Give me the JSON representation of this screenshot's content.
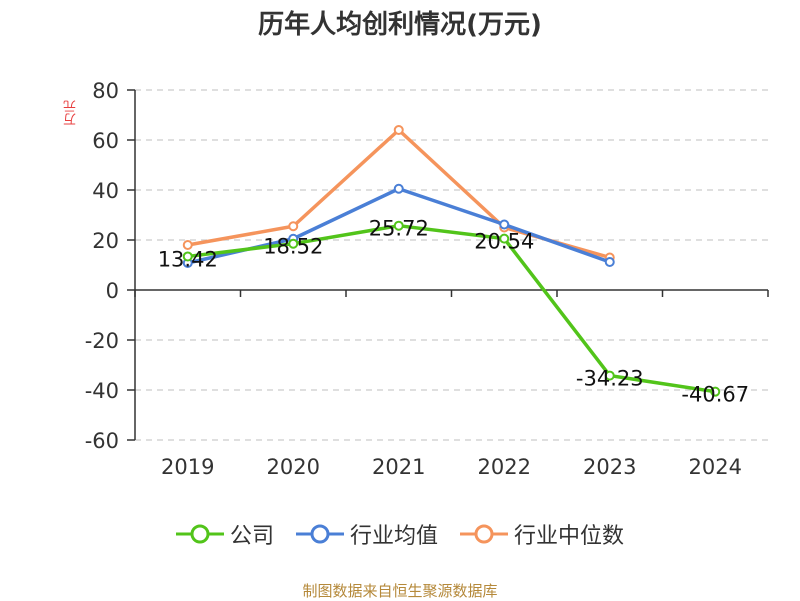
{
  "chart_data": {
    "type": "line",
    "title": "历年人均创利情况(万元)",
    "ylabel": "万元",
    "xlabel": "",
    "categories": [
      "2019",
      "2020",
      "2021",
      "2022",
      "2023",
      "2024"
    ],
    "ylim": [
      -60,
      80
    ],
    "yticks": [
      80,
      60,
      40,
      20,
      0,
      -20,
      -40,
      -60
    ],
    "grid": true,
    "legend_position": "bottom",
    "series": [
      {
        "name": "公司",
        "color": "#52c41a",
        "values": [
          13.42,
          18.52,
          25.72,
          20.54,
          -34.23,
          -40.67
        ],
        "labels": [
          "13.42",
          "18.52",
          "25.72",
          "20.54",
          "-34.23",
          "-40.67"
        ]
      },
      {
        "name": "行业均值",
        "color": "#4a7fd6",
        "values": [
          10.8,
          20.5,
          40.5,
          26.2,
          11.2,
          null
        ]
      },
      {
        "name": "行业中位数",
        "color": "#f5945c",
        "values": [
          18.0,
          25.5,
          64.0,
          25.0,
          13.0,
          null
        ]
      }
    ]
  },
  "footer": "制图数据来自恒生聚源数据库"
}
